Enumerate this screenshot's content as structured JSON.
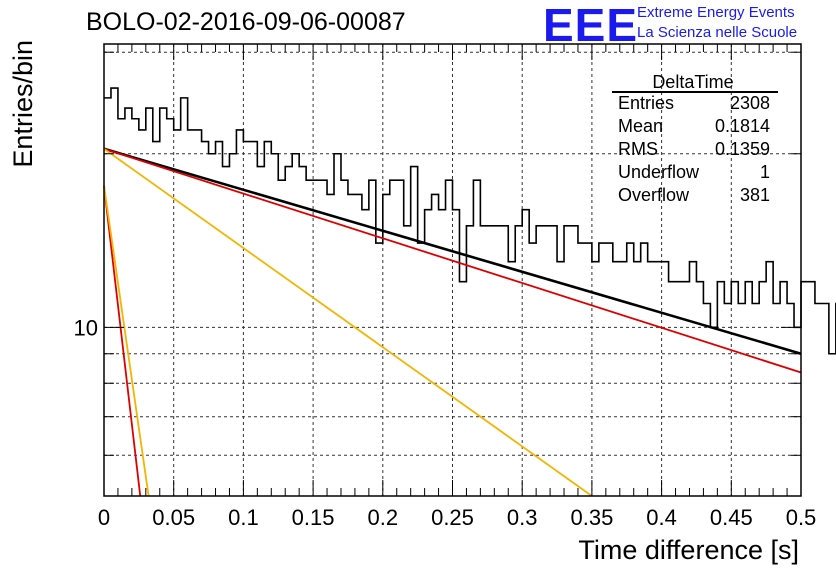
{
  "title": "BOLO-02-2016-09-06-00087",
  "logo": {
    "mark": "EEE",
    "line1": "Extreme Energy Events",
    "line2": "La Scienza nelle Scuole",
    "color": "#1a1aee"
  },
  "stats": {
    "title": "DeltaTime",
    "rows": [
      {
        "label": "Entries",
        "value": "2308"
      },
      {
        "label": "Mean",
        "value": "0.1814"
      },
      {
        "label": "RMS",
        "value": "0.1359"
      },
      {
        "label": "Underflow",
        "value": "1"
      },
      {
        "label": "Overflow",
        "value": "381"
      }
    ]
  },
  "chart_data": {
    "type": "line",
    "xlabel": "Time difference [s]",
    "ylabel": "Entries/bin",
    "xlim": [
      0,
      0.5
    ],
    "ylim": [
      5.1,
      31
    ],
    "log_y": true,
    "grid": true,
    "x_ticks": [
      "0",
      "0.05",
      "0.1",
      "0.15",
      "0.2",
      "0.25",
      "0.3",
      "0.35",
      "0.4",
      "0.45",
      "0.5"
    ],
    "y_ticks": [
      "10"
    ],
    "histogram": {
      "name": "DeltaTime",
      "bin_width": 0.005,
      "color": "#000000",
      "values": [
        25,
        26,
        23,
        24,
        23,
        22,
        24,
        21,
        24,
        23,
        22,
        25,
        22,
        22,
        21,
        20,
        21,
        19,
        20,
        22,
        21,
        21,
        19,
        21,
        20,
        18,
        19,
        20,
        19,
        18,
        18,
        18,
        17,
        20,
        18,
        17,
        17,
        16,
        18,
        14,
        17,
        18,
        18,
        15,
        19,
        14,
        16,
        17,
        16,
        18,
        16,
        12,
        15,
        18,
        15,
        15,
        15,
        15,
        13,
        15,
        16,
        14,
        15,
        15,
        15,
        13,
        15,
        15,
        14,
        14,
        13,
        14,
        14,
        13,
        13,
        14,
        13,
        14,
        13,
        13,
        13,
        12,
        12,
        12,
        13,
        12,
        11,
        10,
        12,
        11,
        12,
        11,
        12,
        11,
        12,
        13,
        11,
        12,
        11,
        10,
        12,
        12,
        11,
        11,
        9,
        11,
        10,
        12,
        11,
        10,
        11,
        11,
        12,
        10,
        11,
        10,
        10,
        10,
        12,
        11,
        10,
        11,
        10,
        11,
        10,
        10,
        11,
        9,
        10,
        10,
        10,
        9,
        9,
        10,
        9,
        10,
        9,
        10,
        9,
        10,
        9,
        10,
        9,
        8,
        9,
        9,
        9,
        9,
        8,
        9
      ]
    },
    "fits": [
      {
        "name": "total fit",
        "color": "#000000",
        "points": [
          [
            0,
            20.4
          ],
          [
            0.5,
            9.0
          ]
        ]
      },
      {
        "name": "slow component",
        "color": "#dd0000",
        "points": [
          [
            0,
            20.4
          ],
          [
            0.5,
            8.35
          ]
        ]
      },
      {
        "name": "slow component 2",
        "color": "#f5b400",
        "points": [
          [
            0,
            20.4
          ],
          [
            0.35,
            5.1
          ]
        ]
      },
      {
        "name": "fast component",
        "color": "#dd0000",
        "points": [
          [
            0,
            17.6
          ],
          [
            0.026,
            5.1
          ]
        ]
      },
      {
        "name": "fast component 2",
        "color": "#f5b400",
        "points": [
          [
            0,
            17.6
          ],
          [
            0.032,
            5.1
          ]
        ]
      }
    ]
  }
}
